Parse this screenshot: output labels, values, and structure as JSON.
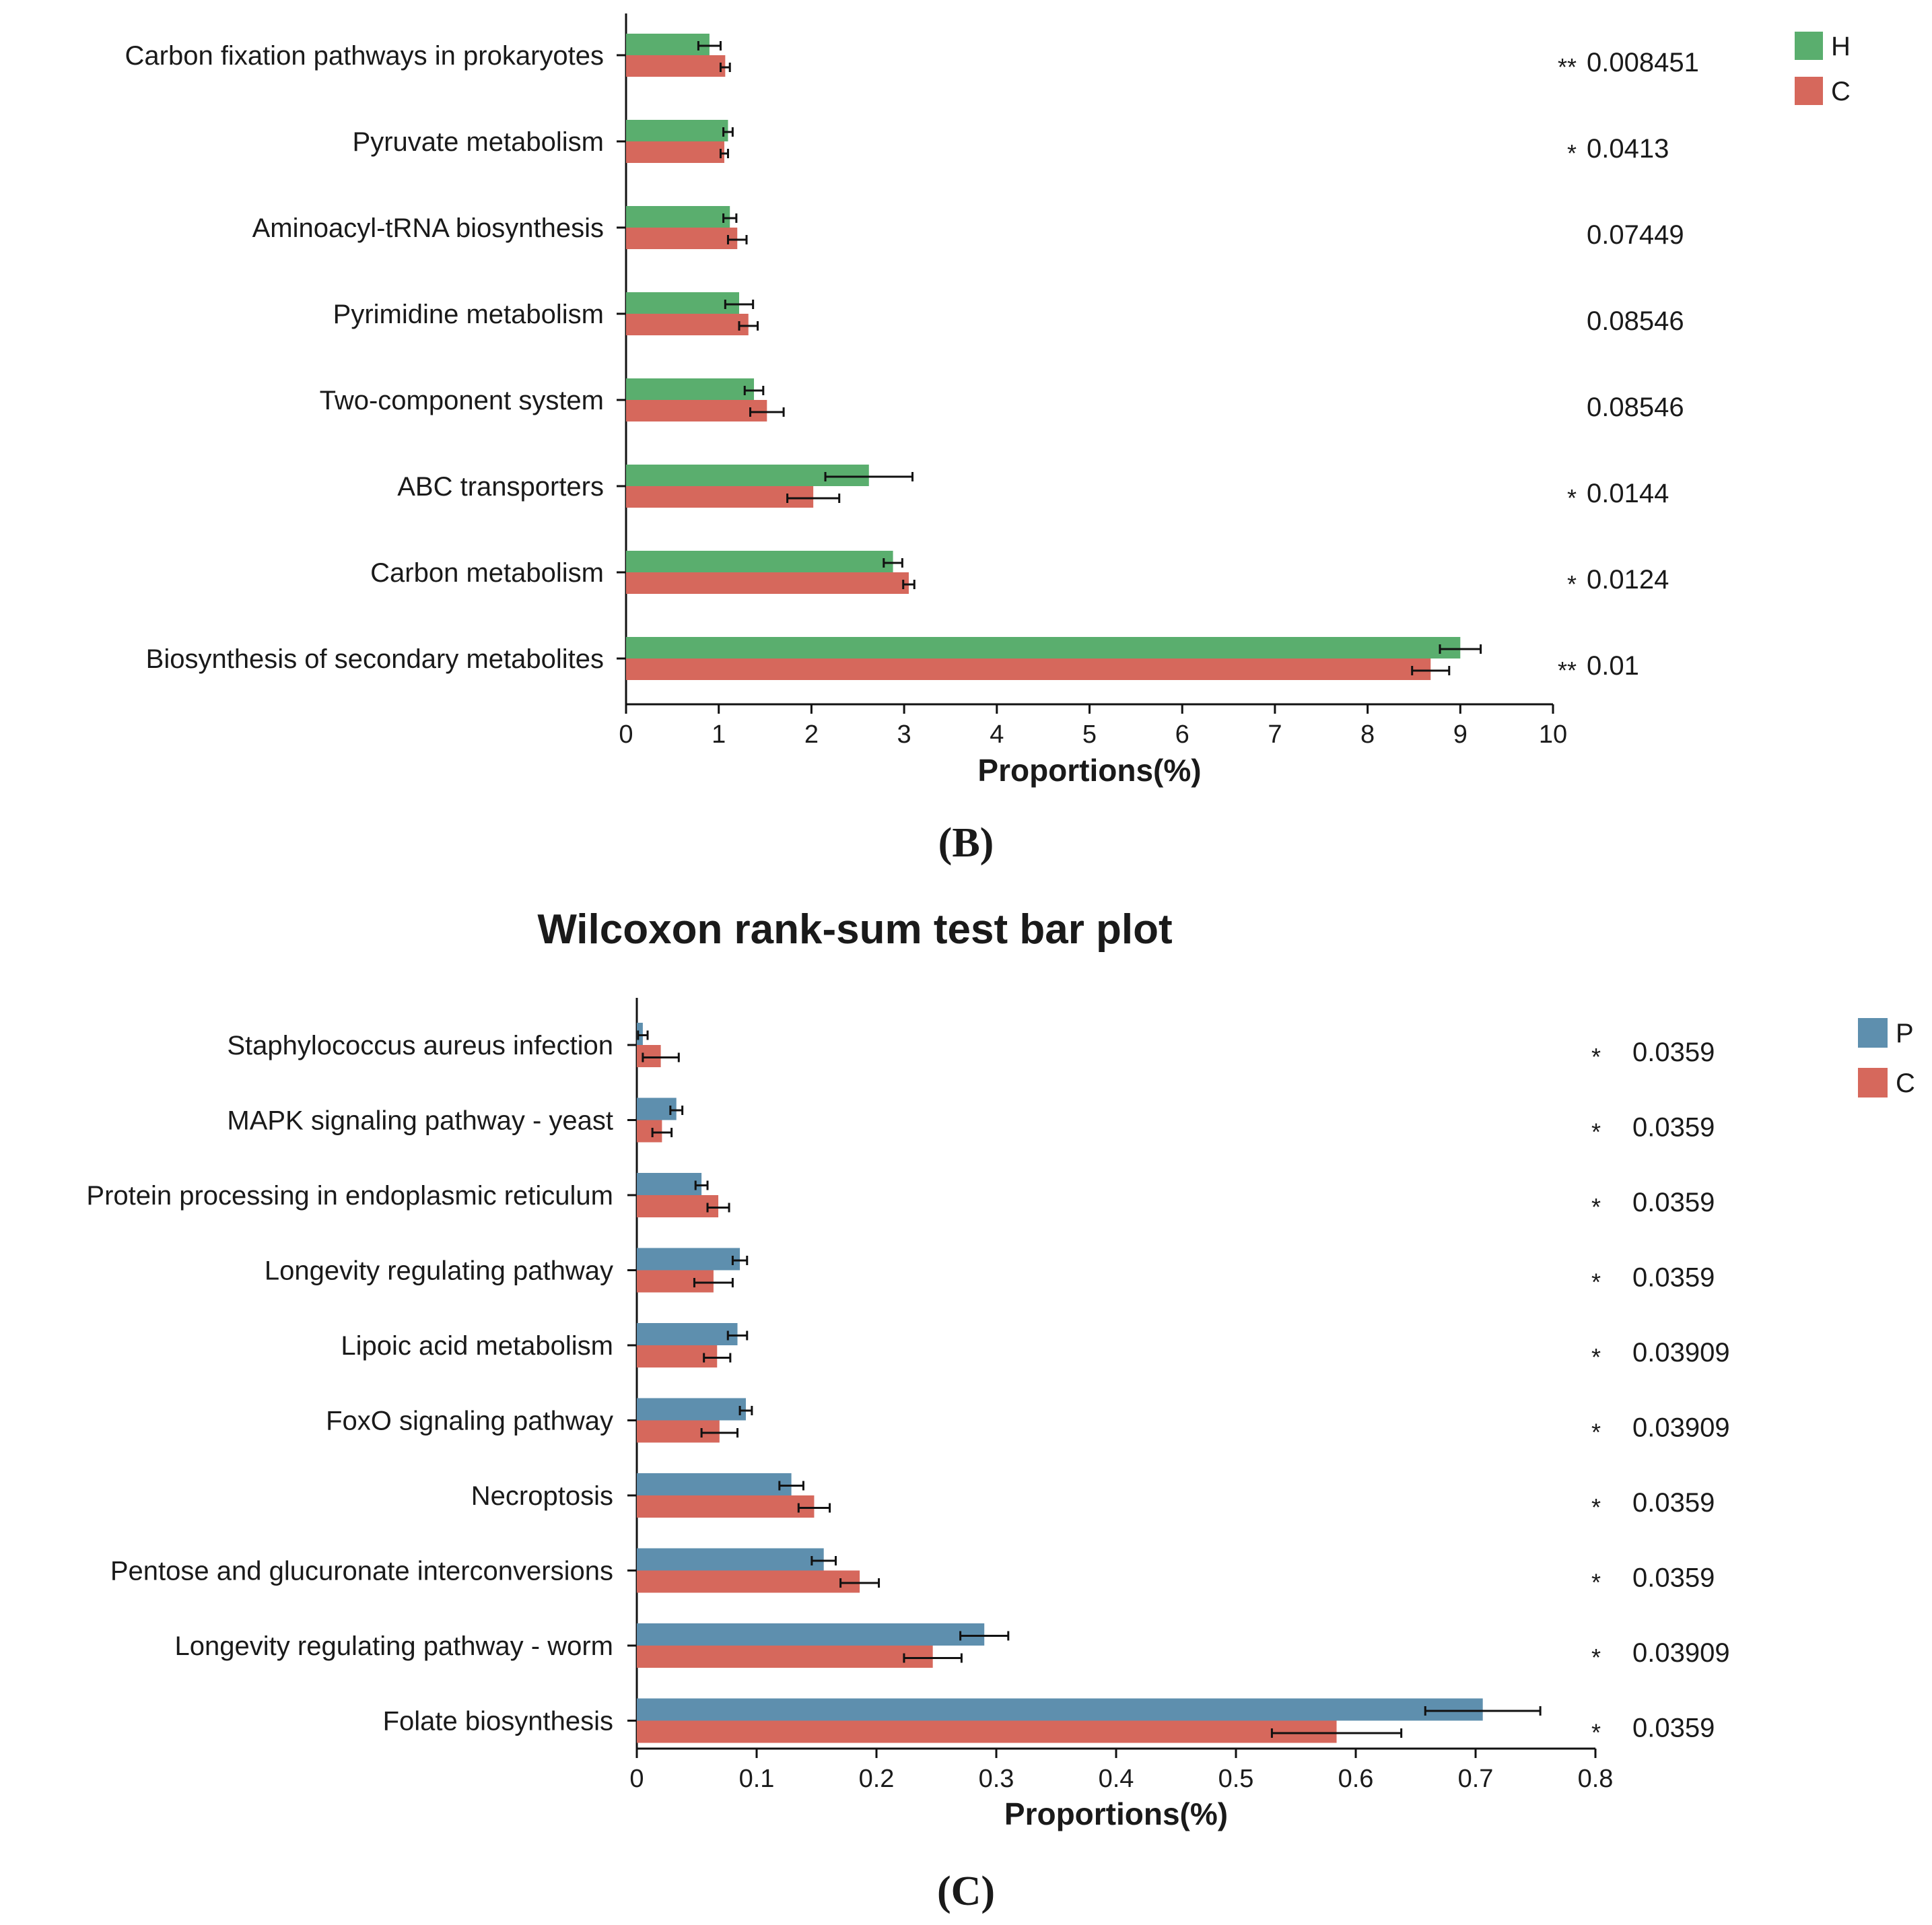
{
  "chart_data": [
    {
      "type": "bar",
      "orientation": "horizontal",
      "panel_label": "(B)",
      "title": "",
      "xlabel": "Proportions(%)",
      "xlim": [
        0,
        10
      ],
      "xticks": [
        "0",
        "1",
        "2",
        "3",
        "4",
        "5",
        "6",
        "7",
        "8",
        "9",
        "10"
      ],
      "legend_position": "top-right",
      "categories": [
        "Carbon fixation pathways in prokaryotes",
        "Pyruvate metabolism",
        "Aminoacyl-tRNA biosynthesis",
        "Pyrimidine metabolism",
        "Two-component system",
        "ABC transporters",
        "Carbon metabolism",
        "Biosynthesis of secondary metabolites"
      ],
      "series": [
        {
          "name": "H",
          "color": "#5aae6e",
          "values": [
            0.9,
            1.1,
            1.12,
            1.22,
            1.38,
            2.62,
            2.88,
            9.0
          ],
          "errors": [
            0.12,
            0.05,
            0.07,
            0.15,
            0.1,
            0.47,
            0.1,
            0.22
          ]
        },
        {
          "name": "C",
          "color": "#d6685c",
          "values": [
            1.07,
            1.06,
            1.2,
            1.32,
            1.52,
            2.02,
            3.05,
            8.68
          ],
          "errors": [
            0.05,
            0.04,
            0.1,
            0.1,
            0.18,
            0.28,
            0.06,
            0.2
          ]
        }
      ],
      "stars": [
        "**",
        "*",
        "",
        "",
        "",
        "*",
        "*",
        "**"
      ],
      "pvalues": [
        "0.008451",
        "0.0413",
        "0.07449",
        "0.08546",
        "0.08546",
        "0.0144",
        "0.0124",
        "0.01"
      ]
    },
    {
      "type": "bar",
      "orientation": "horizontal",
      "panel_label": "(C)",
      "title": "Wilcoxon rank-sum test bar plot",
      "xlabel": "Proportions(%)",
      "xlim": [
        0,
        0.8
      ],
      "xticks": [
        "0",
        "0.1",
        "0.2",
        "0.3",
        "0.4",
        "0.5",
        "0.6",
        "0.7",
        "0.8"
      ],
      "legend_position": "top-right",
      "categories": [
        "Staphylococcus aureus infection",
        "MAPK signaling pathway - yeast",
        "Protein processing in endoplasmic reticulum",
        "Longevity regulating pathway",
        "Lipoic acid metabolism",
        "FoxO signaling pathway",
        "Necroptosis",
        "Pentose and glucuronate interconversions",
        "Longevity regulating pathway - worm",
        "Folate biosynthesis"
      ],
      "series": [
        {
          "name": "P",
          "color": "#5e8fae",
          "values": [
            0.005,
            0.033,
            0.054,
            0.086,
            0.084,
            0.091,
            0.129,
            0.156,
            0.29,
            0.706
          ],
          "errors": [
            0.004,
            0.005,
            0.005,
            0.006,
            0.008,
            0.005,
            0.01,
            0.01,
            0.02,
            0.048
          ]
        },
        {
          "name": "C",
          "color": "#d6685c",
          "values": [
            0.02,
            0.021,
            0.068,
            0.064,
            0.067,
            0.069,
            0.148,
            0.186,
            0.247,
            0.584
          ],
          "errors": [
            0.015,
            0.008,
            0.009,
            0.016,
            0.011,
            0.015,
            0.013,
            0.016,
            0.024,
            0.054
          ]
        }
      ],
      "stars": [
        "*",
        "*",
        "*",
        "*",
        "*",
        "*",
        "*",
        "*",
        "*",
        "*"
      ],
      "pvalues": [
        "0.0359",
        "0.0359",
        "0.0359",
        "0.0359",
        "0.03909",
        "0.03909",
        "0.0359",
        "0.0359",
        "0.03909",
        "0.0359"
      ]
    }
  ]
}
